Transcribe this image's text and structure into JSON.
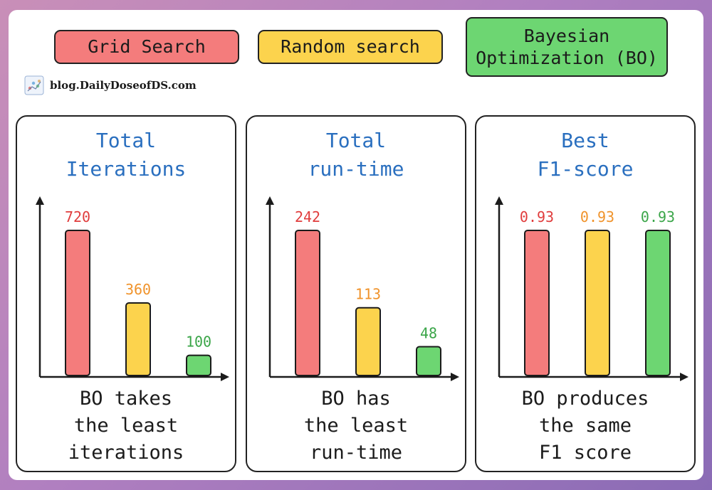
{
  "legend": {
    "grid_search": {
      "label": "Grid Search",
      "color": "#f47c7c"
    },
    "random_search": {
      "label": "Random search",
      "color": "#fcd34d"
    },
    "bayesian": {
      "label_line1": "Bayesian",
      "label_line2": "Optimization (BO)",
      "color": "#6dd672"
    }
  },
  "site": {
    "text": "blog.DailyDoseofDS.com",
    "logo_icon": "chart-logo-icon"
  },
  "panels": [
    {
      "title_line1": "Total",
      "title_line2": "Iterations",
      "note_line1": "BO takes",
      "note_line2": "the least",
      "note_line3": "iterations"
    },
    {
      "title_line1": "Total",
      "title_line2": "run-time",
      "note_line1": "BO has",
      "note_line2": "the least",
      "note_line3": "run-time"
    },
    {
      "title_line1": "Best",
      "title_line2": "F1-score",
      "note_line1": "BO produces",
      "note_line2": "the same",
      "note_line3": "F1 score"
    }
  ],
  "chart_data": [
    {
      "type": "bar",
      "title": "Total Iterations",
      "categories": [
        "Grid Search",
        "Random search",
        "Bayesian Optimization (BO)"
      ],
      "values": [
        720,
        360,
        100
      ],
      "labels": [
        "720",
        "360",
        "100"
      ],
      "colors": [
        "#f47c7c",
        "#fcd34d",
        "#6dd672"
      ],
      "label_colors": [
        "#e03c3c",
        "#f0932b",
        "#3aa548"
      ],
      "ylim": [
        0,
        720
      ]
    },
    {
      "type": "bar",
      "title": "Total run-time",
      "categories": [
        "Grid Search",
        "Random search",
        "Bayesian Optimization (BO)"
      ],
      "values": [
        242,
        113,
        48
      ],
      "labels": [
        "242",
        "113",
        "48"
      ],
      "colors": [
        "#f47c7c",
        "#fcd34d",
        "#6dd672"
      ],
      "label_colors": [
        "#e03c3c",
        "#f0932b",
        "#3aa548"
      ],
      "ylim": [
        0,
        242
      ]
    },
    {
      "type": "bar",
      "title": "Best F1-score",
      "categories": [
        "Grid Search",
        "Random search",
        "Bayesian Optimization (BO)"
      ],
      "values": [
        0.93,
        0.93,
        0.93
      ],
      "labels": [
        "0.93",
        "0.93",
        "0.93"
      ],
      "colors": [
        "#f47c7c",
        "#fcd34d",
        "#6dd672"
      ],
      "label_colors": [
        "#e03c3c",
        "#f0932b",
        "#3aa548"
      ],
      "ylim": [
        0,
        0.93
      ]
    }
  ]
}
